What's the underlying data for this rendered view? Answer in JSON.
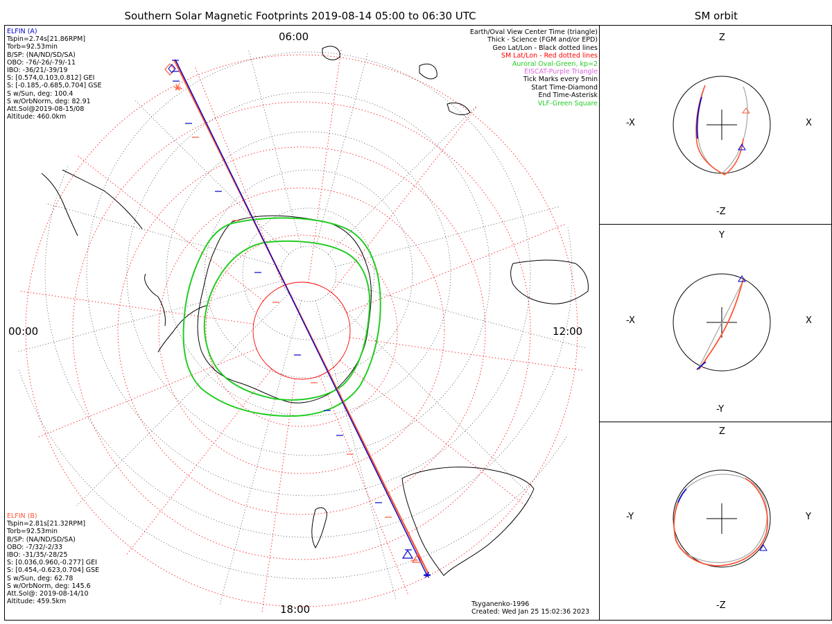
{
  "title": "Southern Solar Magnetic Footprints 2019-08-14 05:00 to 06:30 UTC",
  "orbit_title": "SM orbit",
  "hour_labels": {
    "top": "06:00",
    "left": "00:00",
    "right": "12:00",
    "bottom": "18:00"
  },
  "elfin_a": {
    "name": "ELFIN (A)",
    "color": "#0000cc",
    "lines": [
      "Tspin=2.74s[21.86RPM]",
      "Torb=92.53min",
      "B/SP: (NA/ND/SD/SA)",
      "OBO: -76/-26/-79/-11",
      "IBO: -36/21/-39/19",
      "S: [0.574,0.103,0.812] GEI",
      "S: [-0.185,-0.685,0.704] GSE",
      "S w/Sun, deg: 100.4",
      "S w/OrbNorm, deg: 82.91",
      "Att.Sol@2019-08-15/08",
      "Altitude: 460.0km"
    ]
  },
  "elfin_b": {
    "name": "ELFIN (B)",
    "color": "#ff5533",
    "lines": [
      "Tspin=2.81s[21.32RPM]",
      "Torb=92.53min",
      "B/SP: (NA/ND/SD/SA)",
      "OBO: -7/32/-2/33",
      "IBO: -31/35/-28/25",
      "S: [0.036,0.960,-0.277] GEI",
      "S: [0.454,-0.623,0.704] GSE",
      "S w/Sun, deg: 62.78",
      "S w/OrbNorm, deg: 145.6",
      "Att.Sol@: 2019-08-14/10",
      "Altitude: 459.5km"
    ]
  },
  "legend": [
    {
      "text": "Earth/Oval View Center Time (triangle)",
      "color": "#000000"
    },
    {
      "text": "Thick - Science (FGM and/or EPD)",
      "color": "#000000"
    },
    {
      "text": "Geo Lat/Lon - Black dotted lines",
      "color": "#000000"
    },
    {
      "text": "SM Lat/Lon - Red dotted lines",
      "color": "#ff0000"
    },
    {
      "text": "Auroral Oval-Green, kp=2",
      "color": "#22cc22"
    },
    {
      "text": "EISCAT-Purple Triangle",
      "color": "#dd66dd"
    },
    {
      "text": "Tick Marks every 5min",
      "color": "#000000"
    },
    {
      "text": "Start Time-Diamond",
      "color": "#000000"
    },
    {
      "text": "End Time-Asterisk",
      "color": "#000000"
    },
    {
      "text": "VLF-Green Square",
      "color": "#22cc22"
    }
  ],
  "credits": {
    "model": "Tsyganenko-1996",
    "created": "Created: Wed Jan 25 15:02:36 2023"
  },
  "panels": [
    {
      "top": "Z",
      "bottom": "-Z",
      "left": "-X",
      "right": "X"
    },
    {
      "top": "Y",
      "bottom": "-Y",
      "left": "-X",
      "right": "X"
    },
    {
      "top": "Z",
      "bottom": "-Z",
      "left": "-Y",
      "right": "Y"
    }
  ],
  "colors": {
    "sm_grid": "#ff0000",
    "geo_grid": "#000000",
    "oval": "#22cc22",
    "orbit_a": "#0000cc",
    "orbit_b": "#ff5533",
    "orbit_grey": "#aaaaaa"
  }
}
